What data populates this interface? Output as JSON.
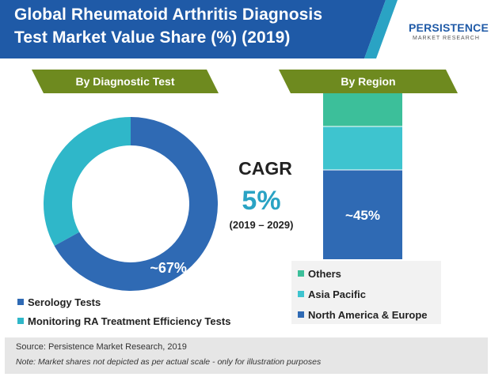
{
  "title": {
    "line1": "Global Rheumatoid Arthritis Diagnosis",
    "line2": "Test Market Value Share (%) (2019)"
  },
  "logo": {
    "name": "PERSISTENCE",
    "subtitle": "MARKET RESEARCH"
  },
  "colors": {
    "banner_blue": "#1f5aa7",
    "banner_teal": "#2aa3c4",
    "label_green": "#6e8a1f",
    "serology": "#2f6ab4",
    "monitoring": "#2fb7c9",
    "others": "#3cbf9a",
    "asia_pacific": "#3ec4cf",
    "north_america_europe": "#2f6ab4",
    "cagr_value": "#2aa3c4"
  },
  "sections": {
    "diagnostic": "By Diagnostic Test",
    "region": "By Region"
  },
  "cagr": {
    "label": "CAGR",
    "value": "5%",
    "period": "(2019 – 2029)"
  },
  "chart_data": [
    {
      "type": "pie",
      "subtype": "donut",
      "title": "By Diagnostic Test",
      "categories": [
        "Serology Tests",
        "Monitoring RA Treatment Efficiency Tests"
      ],
      "values": [
        67,
        33
      ],
      "data_labels": [
        "~67%",
        ""
      ],
      "legend": "bottom"
    },
    {
      "type": "bar",
      "subtype": "stacked",
      "title": "By Region",
      "categories": [
        "Others",
        "Asia Pacific",
        "North America & Europe"
      ],
      "values": [
        17,
        22,
        45
      ],
      "data_labels": [
        "",
        "",
        "~45%"
      ],
      "legend": "bottom"
    }
  ],
  "diagnostic_legend": [
    {
      "label": "Serology Tests",
      "color_key": "serology"
    },
    {
      "label": "Monitoring RA Treatment Efficiency Tests",
      "color_key": "monitoring"
    }
  ],
  "region_legend": [
    {
      "label": "Others",
      "color_key": "others"
    },
    {
      "label": "Asia Pacific",
      "color_key": "asia_pacific"
    },
    {
      "label": "North America & Europe",
      "color_key": "north_america_europe"
    }
  ],
  "footer": {
    "source": "Source: Persistence Market Research, 2019",
    "note": "Note: Market shares not depicted as per actual scale - only for illustration purposes"
  }
}
